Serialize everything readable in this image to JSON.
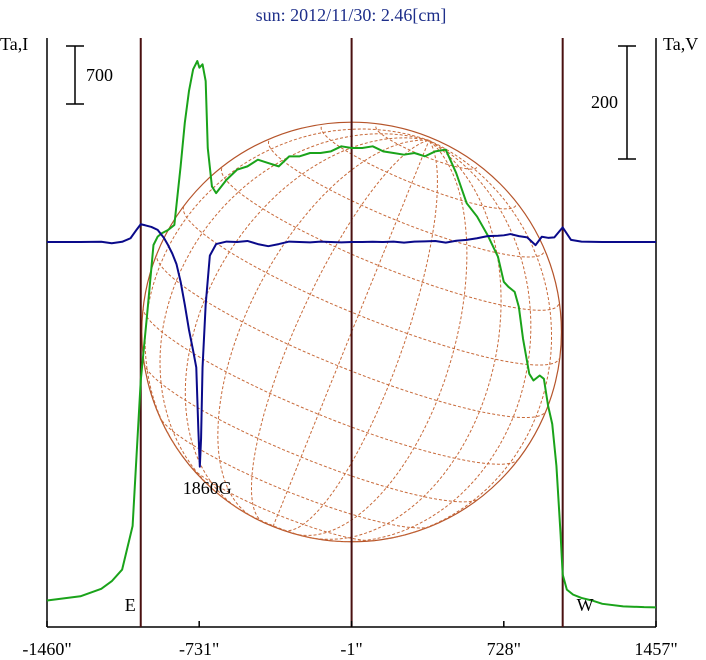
{
  "chart_data": {
    "type": "line",
    "title": "sun: 2012/11/30: 2.46[cm]",
    "left_axis_label": "Ta,I",
    "right_axis_label": "Ta,V",
    "x_ticks": [
      "-1460\"",
      "-731\"",
      "-1\"",
      "728\"",
      "1457\""
    ],
    "x_tick_values": [
      -1460,
      -731,
      -1,
      728,
      1457
    ],
    "xlim": [
      -1460,
      1457
    ],
    "scale_bars": [
      {
        "label": "700",
        "side": "left"
      },
      {
        "label": "200",
        "side": "right"
      }
    ],
    "limb_markers": [
      {
        "label": "E",
        "x": -1011
      },
      {
        "label": "W",
        "x": 1010
      }
    ],
    "center_marker_x": -1,
    "annotations": [
      {
        "text": "1860G",
        "x": -731
      }
    ],
    "series": [
      {
        "name": "Ta,I",
        "color": "#1aa31a",
        "x": [
          -1460,
          -1300,
          -1200,
          -1150,
          -1100,
          -1050,
          -1011,
          -980,
          -950,
          -930,
          -910,
          -880,
          -850,
          -820,
          -800,
          -780,
          -760,
          -740,
          -730,
          -715,
          -700,
          -690,
          -670,
          -650,
          -600,
          -550,
          -500,
          -450,
          -400,
          -350,
          -300,
          -250,
          -200,
          -150,
          -100,
          -50,
          -1,
          50,
          100,
          150,
          200,
          250,
          300,
          350,
          400,
          450,
          500,
          550,
          600,
          650,
          700,
          728,
          750,
          780,
          800,
          820,
          850,
          870,
          900,
          920,
          940,
          960,
          980,
          1000,
          1010,
          1030,
          1060,
          1100,
          1150,
          1200,
          1300,
          1400,
          1457
        ],
        "values": [
          45,
          70,
          115,
          160,
          230,
          490,
          1360,
          1760,
          2170,
          2220,
          2240,
          2260,
          2290,
          2640,
          2900,
          3090,
          3220,
          3270,
          3230,
          3250,
          3150,
          2750,
          2520,
          2480,
          2560,
          2620,
          2640,
          2680,
          2660,
          2640,
          2700,
          2700,
          2720,
          2720,
          2730,
          2760,
          2750,
          2750,
          2760,
          2730,
          2720,
          2710,
          2720,
          2700,
          2730,
          2740,
          2600,
          2420,
          2340,
          2230,
          2100,
          1950,
          1920,
          1890,
          1800,
          1610,
          1400,
          1360,
          1390,
          1370,
          1210,
          1100,
          850,
          440,
          200,
          110,
          80,
          60,
          45,
          25,
          10,
          5,
          4
        ]
      },
      {
        "name": "Ta,V",
        "color": "#0a0a8a",
        "x": [
          -1460,
          -1400,
          -1300,
          -1200,
          -1150,
          -1100,
          -1060,
          -1030,
          -1011,
          -990,
          -960,
          -930,
          -900,
          -880,
          -860,
          -840,
          -820,
          -800,
          -780,
          -760,
          -745,
          -735,
          -728,
          -722,
          -715,
          -700,
          -680,
          -650,
          -600,
          -550,
          -500,
          -450,
          -400,
          -350,
          -300,
          -250,
          -200,
          -150,
          -100,
          -50,
          -1,
          50,
          100,
          150,
          200,
          250,
          300,
          350,
          400,
          450,
          500,
          550,
          600,
          650,
          700,
          728,
          760,
          800,
          840,
          880,
          910,
          940,
          970,
          1000,
          1010,
          1050,
          1100,
          1200,
          1300,
          1400,
          1457
        ],
        "values": [
          0,
          0,
          0,
          1,
          -6,
          1,
          18,
          60,
          85,
          80,
          72,
          58,
          20,
          -15,
          -55,
          -105,
          -190,
          -300,
          -420,
          -520,
          -600,
          -900,
          -1075,
          -940,
          -600,
          -300,
          -65,
          -10,
          2,
          0,
          5,
          -10,
          -20,
          -10,
          2,
          0,
          -2,
          2,
          0,
          -2,
          0,
          0,
          1,
          0,
          2,
          -3,
          2,
          3,
          5,
          -3,
          6,
          10,
          18,
          28,
          30,
          32,
          38,
          28,
          22,
          -15,
          25,
          20,
          22,
          58,
          70,
          10,
          2,
          0,
          0,
          0,
          0
        ]
      }
    ],
    "limb_circle": {
      "center_x": -1,
      "radius": 1005
    }
  }
}
